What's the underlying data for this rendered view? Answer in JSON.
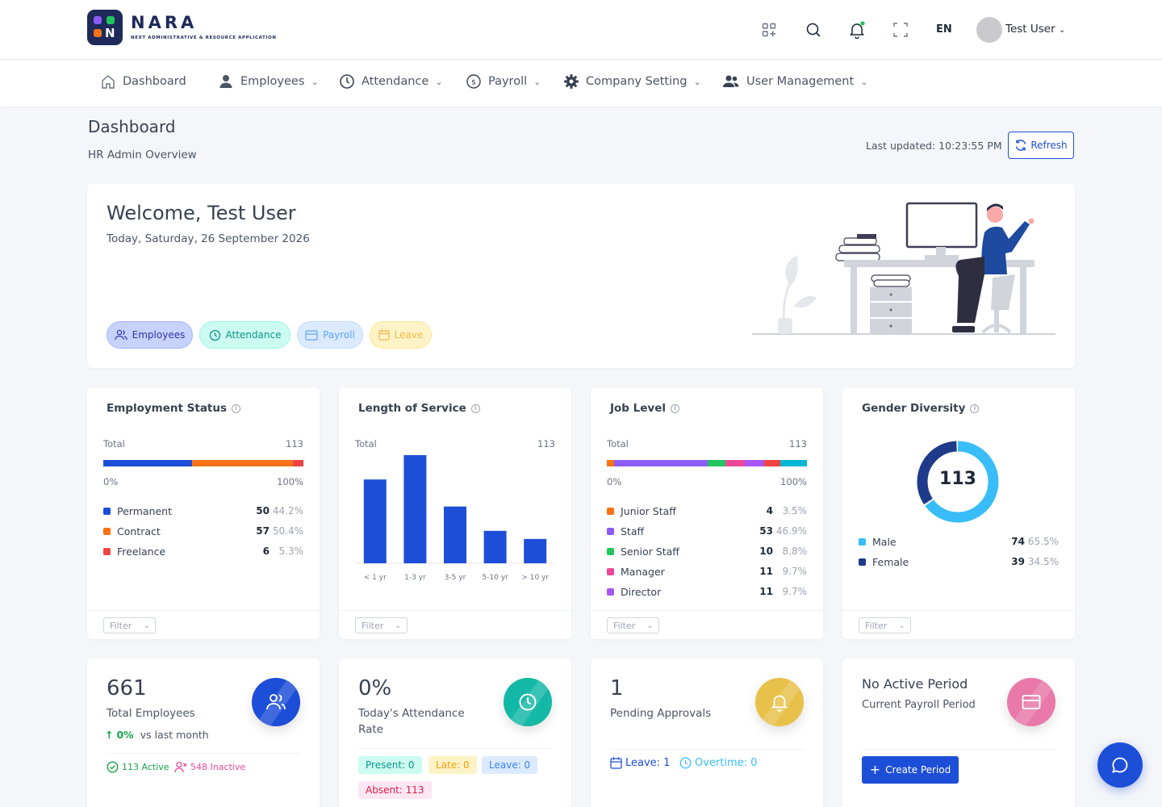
{
  "brand": {
    "name": "NARA",
    "tagline": "NEXT ADMINISTRATIVE & RESOURCE APPLICATION"
  },
  "topbar": {
    "language": "EN",
    "user_name": "Test User"
  },
  "nav": [
    {
      "label": "Dashboard"
    },
    {
      "label": "Employees"
    },
    {
      "label": "Attendance"
    },
    {
      "label": "Payroll"
    },
    {
      "label": "Company Setting"
    },
    {
      "label": "User Management"
    }
  ],
  "page": {
    "title": "Dashboard",
    "subtitle": "HR Admin Overview",
    "last_updated": "Last updated: 10:23:55 PM",
    "refresh_label": "Refresh"
  },
  "welcome": {
    "title": "Welcome, Test User",
    "date": "Today, Saturday, 26 September 2026",
    "pills": [
      "Employees",
      "Attendance",
      "Payroll",
      "Leave"
    ]
  },
  "filter_label": "Filter",
  "employment_status": {
    "title": "Employment Status",
    "total_label": "Total",
    "total": "113",
    "axis_min": "0%",
    "axis_max": "100%",
    "items": [
      {
        "name": "Permanent",
        "count": "50",
        "pct": "44.2%",
        "color": "#1d4ed8",
        "share": 44.2
      },
      {
        "name": "Contract",
        "count": "57",
        "pct": "50.4%",
        "color": "#f97316",
        "share": 50.4
      },
      {
        "name": "Freelance",
        "count": "6",
        "pct": "5.3%",
        "color": "#ef4444",
        "share": 5.3
      }
    ]
  },
  "length_of_service": {
    "title": "Length of Service",
    "total_label": "Total",
    "total": "113"
  },
  "job_level": {
    "title": "Job Level",
    "total_label": "Total",
    "total": "113",
    "axis_min": "0%",
    "axis_max": "100%",
    "items": [
      {
        "name": "Junior Staff",
        "count": "4",
        "pct": "3.5%",
        "color": "#f97316",
        "share": 3.5
      },
      {
        "name": "Staff",
        "count": "53",
        "pct": "46.9%",
        "color": "#8b5cf6",
        "share": 46.9
      },
      {
        "name": "Senior Staff",
        "count": "10",
        "pct": "8.8%",
        "color": "#22c55e",
        "share": 8.8
      },
      {
        "name": "Manager",
        "count": "11",
        "pct": "9.7%",
        "color": "#ec4899",
        "share": 9.7
      },
      {
        "name": "Director",
        "count": "11",
        "pct": "9.7%",
        "color": "#a855f7",
        "share": 9.7
      }
    ],
    "hidden_segments": [
      {
        "color": "#ef4444",
        "share": 8.0
      },
      {
        "color": "#06b6d4",
        "share": 13.4
      }
    ]
  },
  "gender_diversity": {
    "title": "Gender Diversity",
    "total": "113",
    "items": [
      {
        "name": "Male",
        "count": "74",
        "pct": "65.5%",
        "color": "#38bdf8",
        "share": 65.5
      },
      {
        "name": "Female",
        "count": "39",
        "pct": "34.5%",
        "color": "#1e3a8a",
        "share": 34.5
      }
    ]
  },
  "kpis": {
    "employees": {
      "value": "661",
      "label": "Total Employees",
      "trend": "0%",
      "trend_note": "vs last month",
      "active": "113 Active",
      "inactive": "548 Inactive"
    },
    "attendance": {
      "value": "0%",
      "label": "Today's Attendance Rate",
      "present": "Present: 0",
      "late": "Late: 0",
      "leave": "Leave: 0",
      "absent": "Absent: 113"
    },
    "approvals": {
      "value": "1",
      "label": "Pending Approvals",
      "leave": "Leave: 1",
      "overtime": "Overtime: 0"
    },
    "payroll": {
      "value": "No Active Period",
      "label": "Current Payroll Period",
      "button": "Create Period"
    }
  },
  "chart_data": {
    "type": "bar",
    "categories": [
      "< 1 yr",
      "1-3 yr",
      "3-5 yr",
      "5-10 yr",
      "> 10 yr"
    ],
    "values": [
      31,
      40,
      21,
      12,
      9
    ],
    "ylim": [
      0,
      40
    ],
    "color": "#1d4ed8",
    "title": "Length of Service"
  }
}
